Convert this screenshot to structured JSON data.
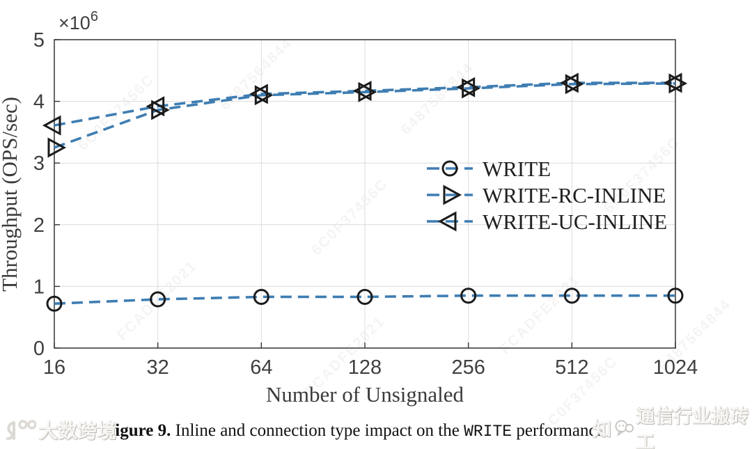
{
  "chart_data": {
    "type": "line",
    "x_categories": [
      "16",
      "32",
      "64",
      "128",
      "256",
      "512",
      "1024"
    ],
    "series": [
      {
        "name": "WRITE",
        "marker": "circle",
        "values": [
          0.72,
          0.79,
          0.83,
          0.83,
          0.85,
          0.85,
          0.85
        ]
      },
      {
        "name": "WRITE-RC-INLINE",
        "marker": "triangle-right",
        "values": [
          3.25,
          3.86,
          4.1,
          4.15,
          4.21,
          4.28,
          4.29
        ]
      },
      {
        "name": "WRITE-UC-INLINE",
        "marker": "triangle-left",
        "values": [
          3.61,
          3.92,
          4.12,
          4.17,
          4.23,
          4.3,
          4.3
        ]
      }
    ],
    "xlabel": "Number of Unsignaled",
    "ylabel": "Throughput (OPS/sec)",
    "y_ticks": [
      0,
      1,
      2,
      3,
      4,
      5
    ],
    "ylim": [
      0,
      5
    ],
    "exponent_base": "×10",
    "exponent_power": "6",
    "grid": true,
    "legend_position": "middle-right",
    "line_color": "#3E7DB2",
    "marker_color": "#1b1b1b",
    "grid_color": "#dcdcdc",
    "axis_color": "#333333",
    "tick_label_color": "#3f3f3f",
    "axis_label_color": "#3a3a3a"
  },
  "caption": {
    "label": "Figure 9.",
    "text_before": " Inline and connection type impact on the ",
    "code": "WRITE",
    "text_after": " performance."
  },
  "watermarks": {
    "bottom_left_text": "大数跨境",
    "bottom_right_prefix": "知",
    "bottom_right_text": "通信行业搬砖工",
    "diagonal_codes": [
      "6C0F37456C",
      "6487564844",
      "FCADFE2021"
    ]
  }
}
